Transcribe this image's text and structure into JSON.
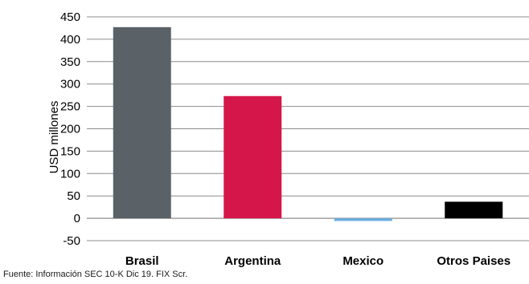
{
  "chart_data": {
    "type": "bar",
    "categories": [
      "Brasil",
      "Argentina",
      "Mexico",
      "Otros Paises"
    ],
    "values": [
      427,
      273,
      -6,
      37
    ],
    "bar_colors": [
      "#5a6268",
      "#d4164a",
      "#6aaee0",
      "#000000"
    ],
    "ylabel": "USD millones",
    "ylim": [
      -50,
      450
    ],
    "yticks": [
      -50,
      0,
      50,
      100,
      150,
      200,
      250,
      300,
      350,
      400,
      450
    ],
    "grid": true,
    "legend": "none"
  },
  "source_note": "Fuente: Información SEC 10-K Dic 19. FIX Scr.",
  "colors": {
    "gridline": "#8c8c8c",
    "axis": "#8c8c8c"
  }
}
